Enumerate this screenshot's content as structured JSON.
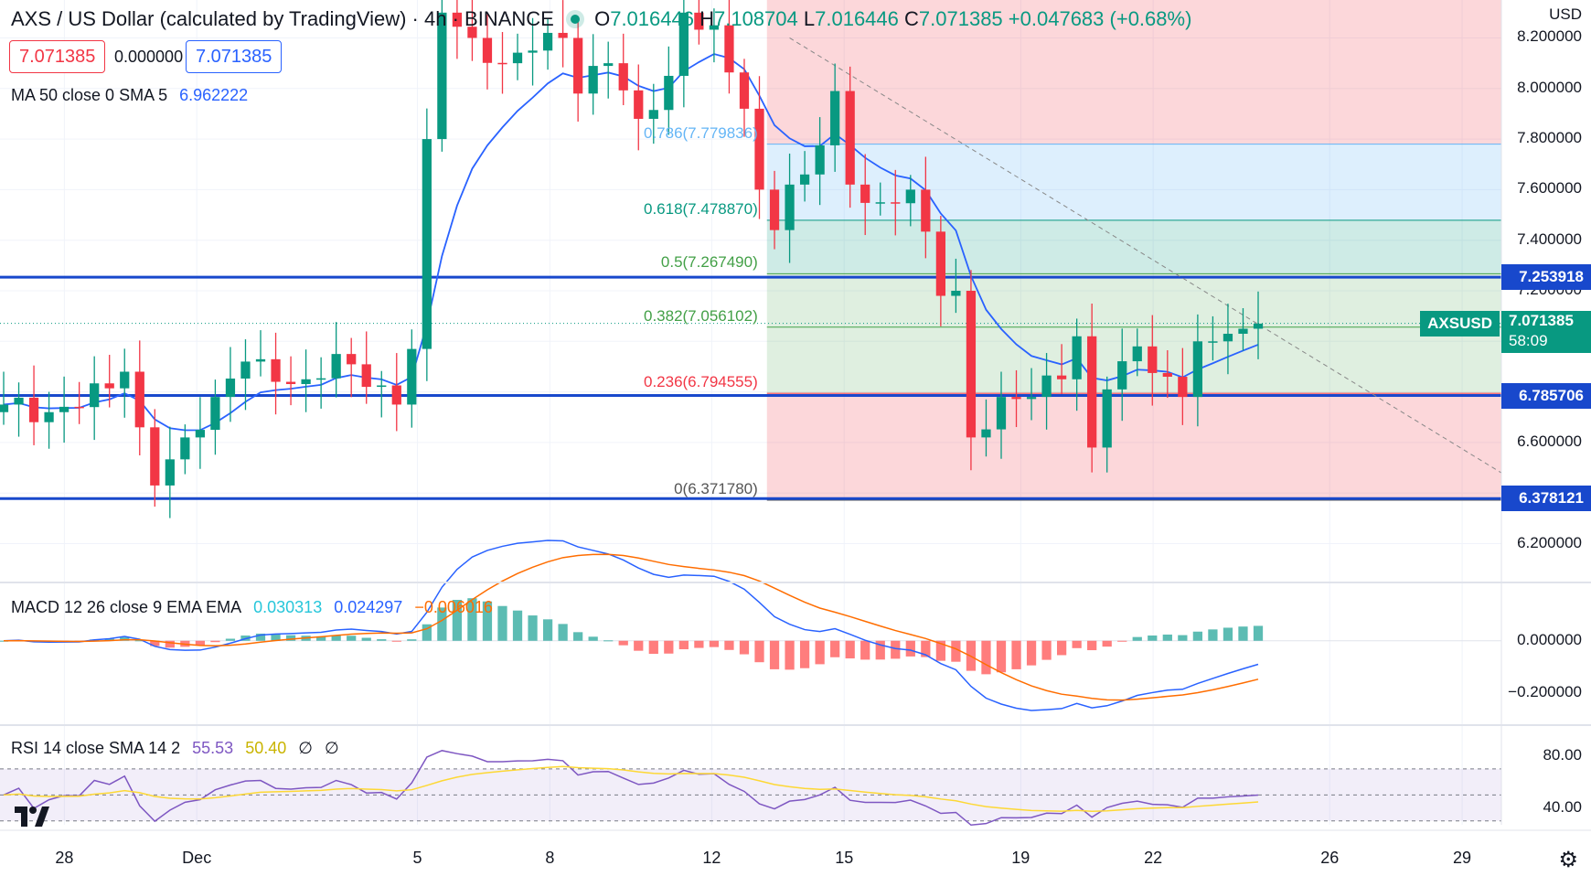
{
  "header": {
    "symbol_title": "AXS / US Dollar (calculated by TradingView) · 4h · BINANCE",
    "ohlc": [
      {
        "key": "O",
        "value": "7.016446"
      },
      {
        "key": "H",
        "value": "7.108704"
      },
      {
        "key": "L",
        "value": "7.016446"
      },
      {
        "key": "C",
        "value": "7.071385"
      }
    ],
    "change": "+0.047683 (+0.68%)",
    "sell_price": "7.071385",
    "spread": "0.000000",
    "buy_price": "7.071385"
  },
  "indicators": {
    "ma_label": "MA 50 close 0 SMA 5",
    "ma_value": "6.962222",
    "macd_label": "MACD 12 26 close 9 EMA EMA",
    "macd_values": [
      "0.030313",
      "0.024297",
      "−0.006016"
    ],
    "rsi_label": "RSI 14 close SMA 14 2",
    "rsi_values": [
      "55.53",
      "50.40",
      "∅",
      "∅"
    ]
  },
  "price_axis": {
    "currency": "USD",
    "ticks": [
      "8.200000",
      "8.000000",
      "7.800000",
      "7.600000",
      "7.400000",
      "7.200000",
      "6.600000",
      "6.200000"
    ],
    "tick_values": [
      8.2,
      8.0,
      7.8,
      7.6,
      7.4,
      7.2,
      6.6,
      6.2
    ],
    "range": [
      6.05,
      8.35
    ]
  },
  "price_tags": [
    {
      "label": "7.253918",
      "value": 7.253918,
      "color": "#1848cc"
    },
    {
      "label": "6.785706",
      "value": 6.785706,
      "color": "#1848cc"
    },
    {
      "label": "6.378121",
      "value": 6.378121,
      "color": "#1848cc"
    }
  ],
  "last_price": {
    "symbol": "AXSUSD",
    "price": "7.071385",
    "countdown": "58:09",
    "value": 7.071385,
    "color": "#089981"
  },
  "fib_levels": [
    {
      "label": "0.786(7.779836)",
      "value": 7.779836,
      "color": "#64b5f6"
    },
    {
      "label": "0.618(7.478870)",
      "value": 7.47887,
      "color": "#089981"
    },
    {
      "label": "0.5(7.267490)",
      "value": 7.26749,
      "color": "#43a047"
    },
    {
      "label": "0.382(7.056102)",
      "value": 7.056102,
      "color": "#43a047"
    },
    {
      "label": "0.236(6.794555)",
      "value": 6.794555,
      "color": "#f23645"
    },
    {
      "label": "0(6.371780)",
      "value": 6.37178,
      "color": "#555555"
    }
  ],
  "macd_axis": {
    "ticks": [
      "0.000000",
      "−0.200000"
    ],
    "tick_values": [
      0,
      -0.2
    ],
    "range": [
      -0.32,
      0.22
    ]
  },
  "rsi_axis": {
    "ticks": [
      "80.00",
      "40.00"
    ],
    "tick_values": [
      80,
      40
    ],
    "range": [
      27,
      103
    ]
  },
  "time_axis": {
    "labels": [
      "28",
      "Dec",
      "5",
      "8",
      "12",
      "15",
      "19",
      "22",
      "26",
      "29"
    ],
    "positions": [
      4,
      13,
      28,
      37,
      48,
      57,
      69,
      78,
      90,
      99
    ]
  },
  "colors": {
    "up": "#089981",
    "down": "#f23645",
    "ma": "#2962ff",
    "macd_signal": "#ff6d00",
    "rsi": "#7e57c2",
    "rsi_ma": "#fdd835",
    "hline": "#1848cc"
  },
  "chart_data": {
    "type": "candlestick",
    "interval": "4h",
    "horizontal_lines": [
      7.253918,
      6.785706,
      6.378121
    ],
    "close_anchors": [
      [
        0,
        6.75
      ],
      [
        3,
        6.72
      ],
      [
        5,
        6.74
      ],
      [
        8,
        6.88
      ],
      [
        9,
        6.66
      ],
      [
        10,
        6.43
      ],
      [
        12,
        6.62
      ],
      [
        14,
        6.78
      ],
      [
        16,
        6.92
      ],
      [
        18,
        6.84
      ],
      [
        20,
        6.85
      ],
      [
        22,
        6.95
      ],
      [
        24,
        6.82
      ],
      [
        26,
        6.75
      ],
      [
        27,
        6.97
      ],
      [
        28,
        7.8
      ],
      [
        29,
        8.3
      ],
      [
        31,
        8.2
      ],
      [
        33,
        8.1
      ],
      [
        35,
        8.15
      ],
      [
        37,
        8.2
      ],
      [
        38,
        7.98
      ],
      [
        40,
        8.1
      ],
      [
        42,
        7.88
      ],
      [
        44,
        8.05
      ],
      [
        45,
        8.3
      ],
      [
        47,
        8.25
      ],
      [
        49,
        7.92
      ],
      [
        50,
        7.6
      ],
      [
        51,
        7.44
      ],
      [
        52,
        7.62
      ],
      [
        53,
        7.66
      ],
      [
        55,
        7.99
      ],
      [
        56,
        7.62
      ],
      [
        58,
        7.55
      ],
      [
        60,
        7.6
      ],
      [
        62,
        7.18
      ],
      [
        63,
        7.2
      ],
      [
        64,
        6.62
      ],
      [
        66,
        6.78
      ],
      [
        68,
        6.78
      ],
      [
        70,
        6.85
      ],
      [
        71,
        7.02
      ],
      [
        72,
        6.58
      ],
      [
        73,
        6.81
      ],
      [
        75,
        6.98
      ],
      [
        77,
        6.86
      ],
      [
        78,
        6.78
      ],
      [
        79,
        7.0
      ],
      [
        80,
        7.0
      ],
      [
        81,
        7.03
      ],
      [
        82,
        7.05
      ],
      [
        83,
        7.07
      ]
    ],
    "candle_count": 84,
    "ma_period": 50,
    "ma_last": 6.962222,
    "macd": {
      "fast": 12,
      "slow": 26,
      "signal": 9,
      "macd_last": 0.024297,
      "signal_last": 0.030313,
      "hist_last": -0.006016
    },
    "rsi": {
      "period": 14,
      "rsi_last": 55.53,
      "ma_last": 50.4,
      "bands": [
        70,
        50,
        30
      ]
    },
    "fib_retracement": {
      "high": 8.2,
      "low": 6.37178
    }
  }
}
